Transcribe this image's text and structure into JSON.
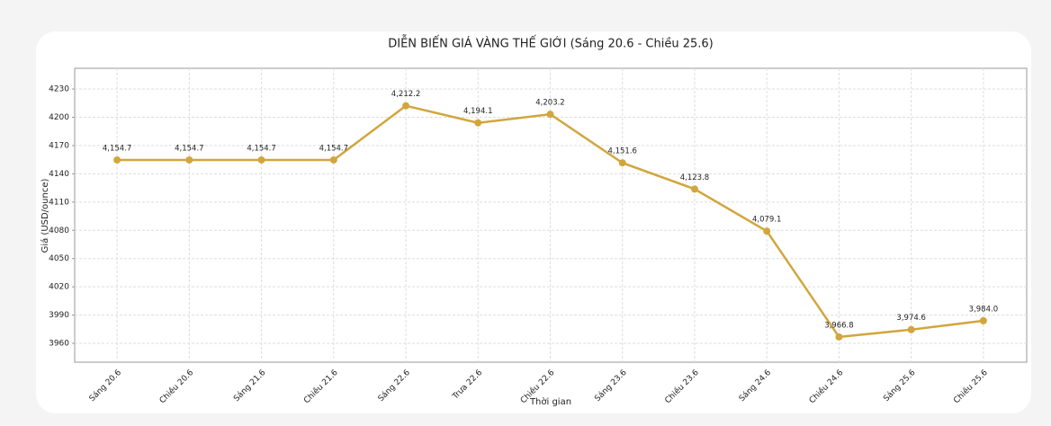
{
  "chart_data": {
    "type": "line",
    "title": "DIỄN BIẾN GIÁ VÀNG THẾ GIỚI (Sáng 20.6 - Chiều 25.6)",
    "x_label": "Thời gian",
    "y_label": "Giá (USD/ounce)",
    "categories": [
      "Sáng 20.6",
      "Chiều 20.6",
      "Sáng 21.6",
      "Chiều 21.6",
      "Sáng 22.6",
      "Trưa 22.6",
      "Chiều 22.6",
      "Sáng 23.6",
      "Chiều 23.6",
      "Sáng 24.6",
      "Chiều 24.6",
      "Sáng 25.6",
      "Chiều 25.6"
    ],
    "values": [
      4154.7,
      4154.7,
      4154.7,
      4154.7,
      4212.2,
      4194.1,
      4203.2,
      4151.6,
      4123.8,
      4079.1,
      3966.8,
      3974.6,
      3984.0
    ],
    "value_labels": [
      "4,154.7",
      "4,154.7",
      "4,154.7",
      "4,154.7",
      "4,212.2",
      "4,194.1",
      "4,203.2",
      "4,151.6",
      "4,123.8",
      "4,079.1",
      "3,966.8",
      "3,974.6",
      "3,984.0"
    ],
    "color": "#d1a63c",
    "ylim": [
      3940,
      4252
    ],
    "yticks": [
      3960,
      3990,
      4020,
      4050,
      4080,
      4110,
      4140,
      4170,
      4200,
      4230
    ],
    "grid": true
  }
}
